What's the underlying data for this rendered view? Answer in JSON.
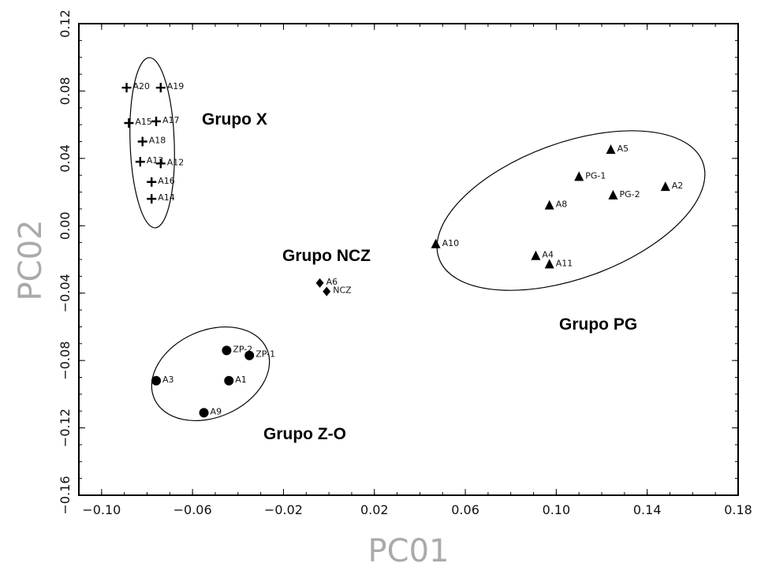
{
  "chart_data": {
    "type": "scatter",
    "xlabel": "PC01",
    "ylabel": "PC02",
    "xlim": [
      -0.11,
      0.18
    ],
    "ylim": [
      -0.16,
      0.12
    ],
    "x_ticks": [
      -0.1,
      -0.06,
      -0.02,
      0.02,
      0.06,
      0.1,
      0.14,
      0.18
    ],
    "y_ticks": [
      0.12,
      0.08,
      0.04,
      0.0,
      -0.04,
      -0.08,
      -0.12,
      -0.16
    ],
    "x_tick_labels": [
      "−0.10",
      "−0.06",
      "−0.02",
      "0.02",
      "0.06",
      "0.10",
      "0.14",
      "0.18"
    ],
    "y_tick_labels": [
      "0.12",
      "0.08",
      "0.04",
      "0.00",
      "−0.04",
      "−0.08",
      "−0.12",
      "−0.16"
    ],
    "grid": false,
    "series": [
      {
        "name": "Grupo X",
        "marker": "plus",
        "points": [
          {
            "label": "A20",
            "x": -0.089,
            "y": 0.082
          },
          {
            "label": "A19",
            "x": -0.074,
            "y": 0.082
          },
          {
            "label": "A15",
            "x": -0.088,
            "y": 0.061
          },
          {
            "label": "A17",
            "x": -0.076,
            "y": 0.062
          },
          {
            "label": "A18",
            "x": -0.082,
            "y": 0.05
          },
          {
            "label": "A13",
            "x": -0.083,
            "y": 0.038
          },
          {
            "label": "A12",
            "x": -0.074,
            "y": 0.037
          },
          {
            "label": "A16",
            "x": -0.078,
            "y": 0.026
          },
          {
            "label": "A14",
            "x": -0.078,
            "y": 0.016
          }
        ]
      },
      {
        "name": "Grupo NCZ",
        "marker": "diamond",
        "points": [
          {
            "label": "A6",
            "x": -0.004,
            "y": -0.034
          },
          {
            "label": "NCZ",
            "x": -0.001,
            "y": -0.039
          }
        ]
      },
      {
        "name": "Grupo PG",
        "marker": "triangle",
        "points": [
          {
            "label": "A5",
            "x": 0.124,
            "y": 0.045
          },
          {
            "label": "PG-1",
            "x": 0.11,
            "y": 0.029
          },
          {
            "label": "A2",
            "x": 0.148,
            "y": 0.023
          },
          {
            "label": "PG-2",
            "x": 0.125,
            "y": 0.018
          },
          {
            "label": "A8",
            "x": 0.097,
            "y": 0.012
          },
          {
            "label": "A10",
            "x": 0.047,
            "y": -0.011
          },
          {
            "label": "A4",
            "x": 0.091,
            "y": -0.018
          },
          {
            "label": "A11",
            "x": 0.097,
            "y": -0.023
          }
        ]
      },
      {
        "name": "Grupo Z-O",
        "marker": "circle",
        "points": [
          {
            "label": "ZP-2",
            "x": -0.045,
            "y": -0.074
          },
          {
            "label": "ZP-1",
            "x": -0.035,
            "y": -0.077
          },
          {
            "label": "A3",
            "x": -0.076,
            "y": -0.092
          },
          {
            "label": "A1",
            "x": -0.044,
            "y": -0.092
          },
          {
            "label": "A9",
            "x": -0.055,
            "y": -0.111
          }
        ]
      }
    ],
    "annotations": [
      "Grupo X",
      "Grupo NCZ",
      "Grupo PG",
      "Grupo Z-O"
    ]
  }
}
